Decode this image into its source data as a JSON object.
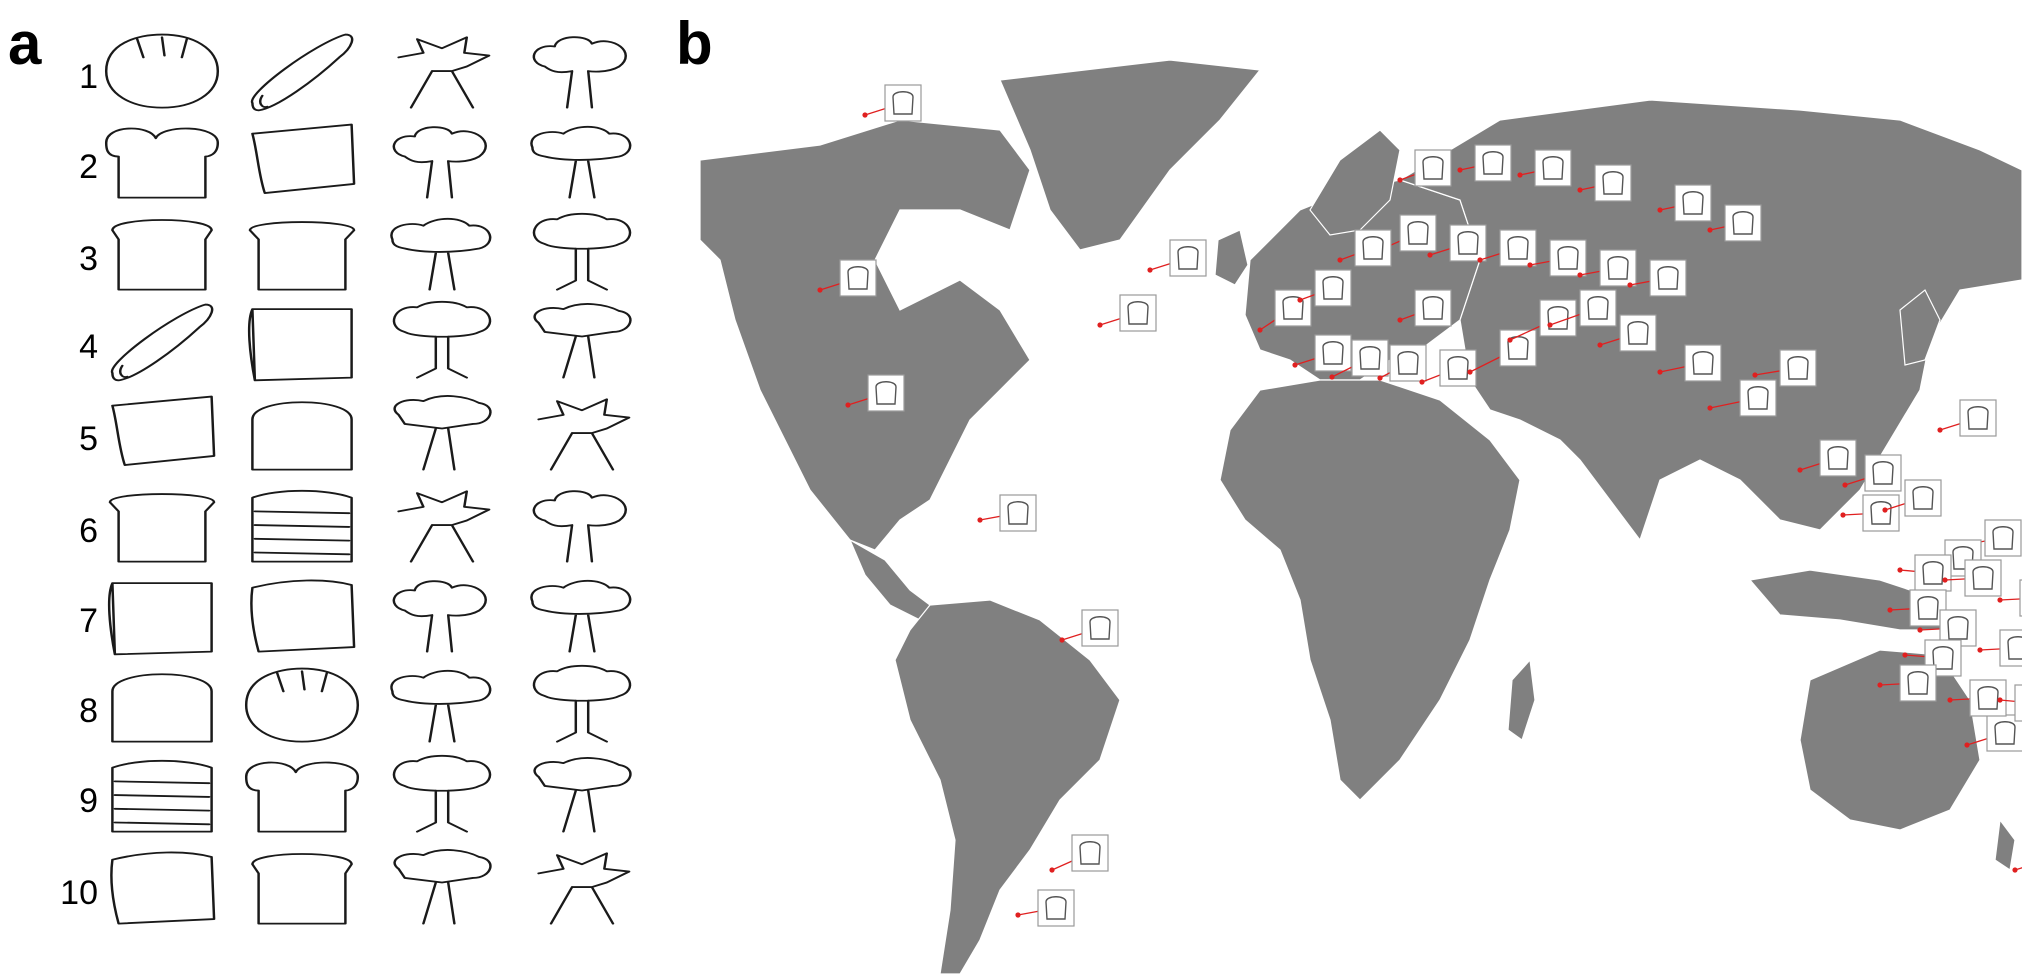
{
  "figure": {
    "panel_a_label": "a",
    "panel_b_label": "b"
  },
  "panel_a": {
    "row_labels": [
      "1",
      "2",
      "3",
      "4",
      "5",
      "6",
      "7",
      "8",
      "9",
      "10"
    ],
    "column_icons": [
      "bread-sketch",
      "bread-sketch",
      "tree-sketch",
      "tree-sketch"
    ]
  },
  "panel_b": {
    "map": "world-map",
    "marker_color": "#e02020",
    "land_color": "#808080",
    "thumbnail_icon": "bread-sketch"
  }
}
